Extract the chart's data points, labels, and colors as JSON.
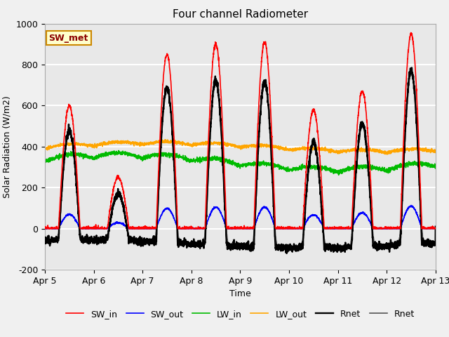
{
  "title": "Four channel Radiometer",
  "xlabel": "Time",
  "ylabel": "Solar Radiation (W/m2)",
  "ylim": [
    -200,
    1000
  ],
  "xlim": [
    0,
    8
  ],
  "xtick_labels": [
    "Apr 5",
    "Apr 6",
    "Apr 7",
    "Apr 8",
    "Apr 9",
    "Apr 10",
    "Apr 11",
    "Apr 12",
    "Apr 13"
  ],
  "ytick_labels": [
    -200,
    0,
    200,
    400,
    600,
    800,
    1000
  ],
  "colors": {
    "SW_in": "#ff0000",
    "SW_out": "#0000ff",
    "LW_in": "#00bb00",
    "LW_out": "#ffa500",
    "Rnet_black": "#000000",
    "Rnet_dark": "#555555"
  },
  "legend_box_color": "#ffffcc",
  "legend_box_edge": "#cc8800",
  "legend_box_text": "SW_met",
  "bg_color": "#e8e8e8",
  "grid_color": "#ffffff",
  "title_fontsize": 11,
  "axis_fontsize": 9,
  "tick_fontsize": 9,
  "legend_fontsize": 9,
  "linewidth": 1.2,
  "day_peaks_SWin": [
    600,
    250,
    850,
    900,
    910,
    580,
    670,
    950
  ],
  "LW_out_base": 390,
  "LW_in_base": 310,
  "night_Rnet": -130
}
